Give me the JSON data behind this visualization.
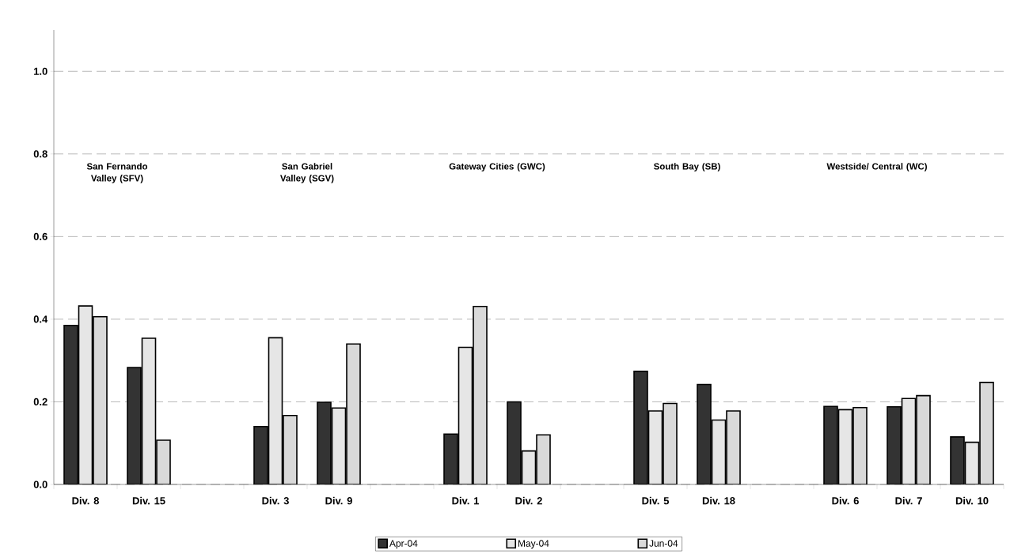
{
  "chart_data": {
    "type": "bar",
    "categories": [
      "Div. 8",
      "Div. 15",
      null,
      "Div. 3",
      "Div. 9",
      null,
      "Div. 1",
      "Div. 2",
      null,
      "Div. 5",
      "Div. 18",
      null,
      "Div. 6",
      "Div. 7",
      "Div. 10"
    ],
    "series": [
      {
        "name": "Apr-04",
        "color": "#333333",
        "values": [
          0.385,
          0.283,
          null,
          0.14,
          0.199,
          null,
          0.122,
          0.2,
          null,
          0.274,
          0.242,
          null,
          0.189,
          0.188,
          0.115
        ]
      },
      {
        "name": "May-04",
        "color": "#e6e6e6",
        "values": [
          0.432,
          0.354,
          null,
          0.355,
          0.185,
          null,
          0.332,
          0.081,
          null,
          0.178,
          0.156,
          null,
          0.181,
          0.208,
          0.102
        ]
      },
      {
        "name": "Jun-04",
        "color": "#d9d9d9",
        "values": [
          0.406,
          0.107,
          null,
          0.167,
          0.34,
          null,
          0.431,
          0.12,
          null,
          0.196,
          0.178,
          null,
          0.186,
          0.215,
          0.247
        ]
      }
    ],
    "annotations": [
      "San Fernando Valley (SFV)",
      "San Gabriel Valley (SGV)",
      "Gateway Cities (GWC)",
      "South Bay (SB)",
      "Westside/ Central (WC)"
    ],
    "ylim": [
      0,
      1.1
    ],
    "yticks": [
      {
        "value": 0,
        "label": "0.0"
      },
      {
        "value": 0.2,
        "label": "0.2"
      },
      {
        "value": 0.4,
        "label": "0.4"
      },
      {
        "value": 0.6,
        "label": "0.6"
      },
      {
        "value": 0.8,
        "label": "0.8"
      },
      {
        "value": 1.0,
        "label": "1.0"
      }
    ],
    "grid": "y",
    "legend": "bottom"
  }
}
